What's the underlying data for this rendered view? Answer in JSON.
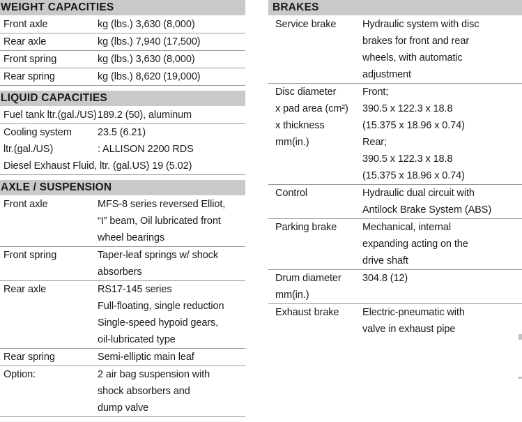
{
  "colors": {
    "header_bar": "#c9c9c9",
    "divider": "#9a9a9a",
    "text": "#1a1a1a",
    "background": "#ffffff"
  },
  "columns": [
    {
      "name": "left",
      "sections": [
        {
          "title": "WEIGHT CAPACITIES",
          "rows": [
            {
              "label": [
                "Front axle"
              ],
              "value": [
                "kg (lbs.) 3,630 (8,000)"
              ],
              "divider": true
            },
            {
              "label": [
                "Rear axle"
              ],
              "value": [
                "kg (lbs.) 7,940 (17,500)"
              ],
              "divider": true
            },
            {
              "label": [
                "Front spring"
              ],
              "value": [
                "kg (lbs.) 3,630 (8,000)"
              ],
              "divider": true
            },
            {
              "label": [
                "Rear spring"
              ],
              "value": [
                "kg (lbs.) 8,620 (19,000)"
              ],
              "divider": true
            }
          ]
        },
        {
          "title": "LIQUID CAPACITIES",
          "rows": [
            {
              "label": [
                "Fuel tank ltr.(gal./US)"
              ],
              "value": [
                "189.2 (50), aluminum"
              ],
              "divider": true
            },
            {
              "label": [
                "Cooling system",
                "ltr.(gal./US)"
              ],
              "value": [
                "23.5 (6.21)",
                ": ALLISON 2200 RDS"
              ],
              "divider": false
            },
            {
              "full": "Diesel Exhaust Fluid, ltr. (gal.US) 19 (5.02)",
              "divider": true
            }
          ]
        },
        {
          "title": "AXLE / SUSPENSION",
          "rows": [
            {
              "label": [
                "Front axle"
              ],
              "value": [
                "MFS-8 series reversed Elliot,",
                "“I” beam, Oil lubricated front",
                "wheel bearings"
              ],
              "divider": true
            },
            {
              "label": [
                "Front spring"
              ],
              "value": [
                "Taper-leaf springs w/ shock",
                "absorbers"
              ],
              "divider": true
            },
            {
              "label": [
                "Rear axle"
              ],
              "value": [
                "RS17-145 series",
                "Full-floating, single reduction",
                "Single-speed hypoid gears,",
                "oil-lubricated type"
              ],
              "divider": true
            },
            {
              "label": [
                "Rear spring"
              ],
              "value": [
                "Semi-elliptic main leaf"
              ],
              "divider": true
            },
            {
              "label": [
                "Option:"
              ],
              "value": [
                "2 air bag suspension with",
                "shock absorbers and",
                "dump valve"
              ],
              "divider": true
            }
          ]
        }
      ]
    },
    {
      "name": "right",
      "sections": [
        {
          "title": "BRAKES",
          "rows": [
            {
              "label": [
                "Service brake"
              ],
              "value": [
                "Hydraulic system with disc",
                "brakes for front and rear",
                "wheels, with automatic",
                "adjustment"
              ],
              "divider": true
            },
            {
              "label": [
                "Disc diameter",
                "x pad area (cm²)",
                "x thickness",
                "mm(in.)"
              ],
              "value": [
                "Front;",
                "390.5 x 122.3 x 18.8",
                "(15.375 x 18.96 x 0.74)",
                "Rear;",
                "390.5 x 122.3 x 18.8",
                "(15.375 x 18.96 x 0.74)"
              ],
              "divider": true
            },
            {
              "label": [
                "Control"
              ],
              "value": [
                "Hydraulic dual circuit with",
                "Antilock Brake System (ABS)"
              ],
              "divider": true
            },
            {
              "label": [
                "Parking brake"
              ],
              "value": [
                "Mechanical, internal",
                "expanding acting on the",
                "drive shaft"
              ],
              "divider": true
            },
            {
              "label": [
                "Drum diameter",
                "mm(in.)"
              ],
              "value": [
                "304.8 (12)"
              ],
              "divider": true
            },
            {
              "label": [
                "Exhaust brake"
              ],
              "value": [
                "Electric-pneumatic with",
                "valve in exhaust pipe"
              ],
              "divider": false
            }
          ]
        }
      ]
    }
  ]
}
